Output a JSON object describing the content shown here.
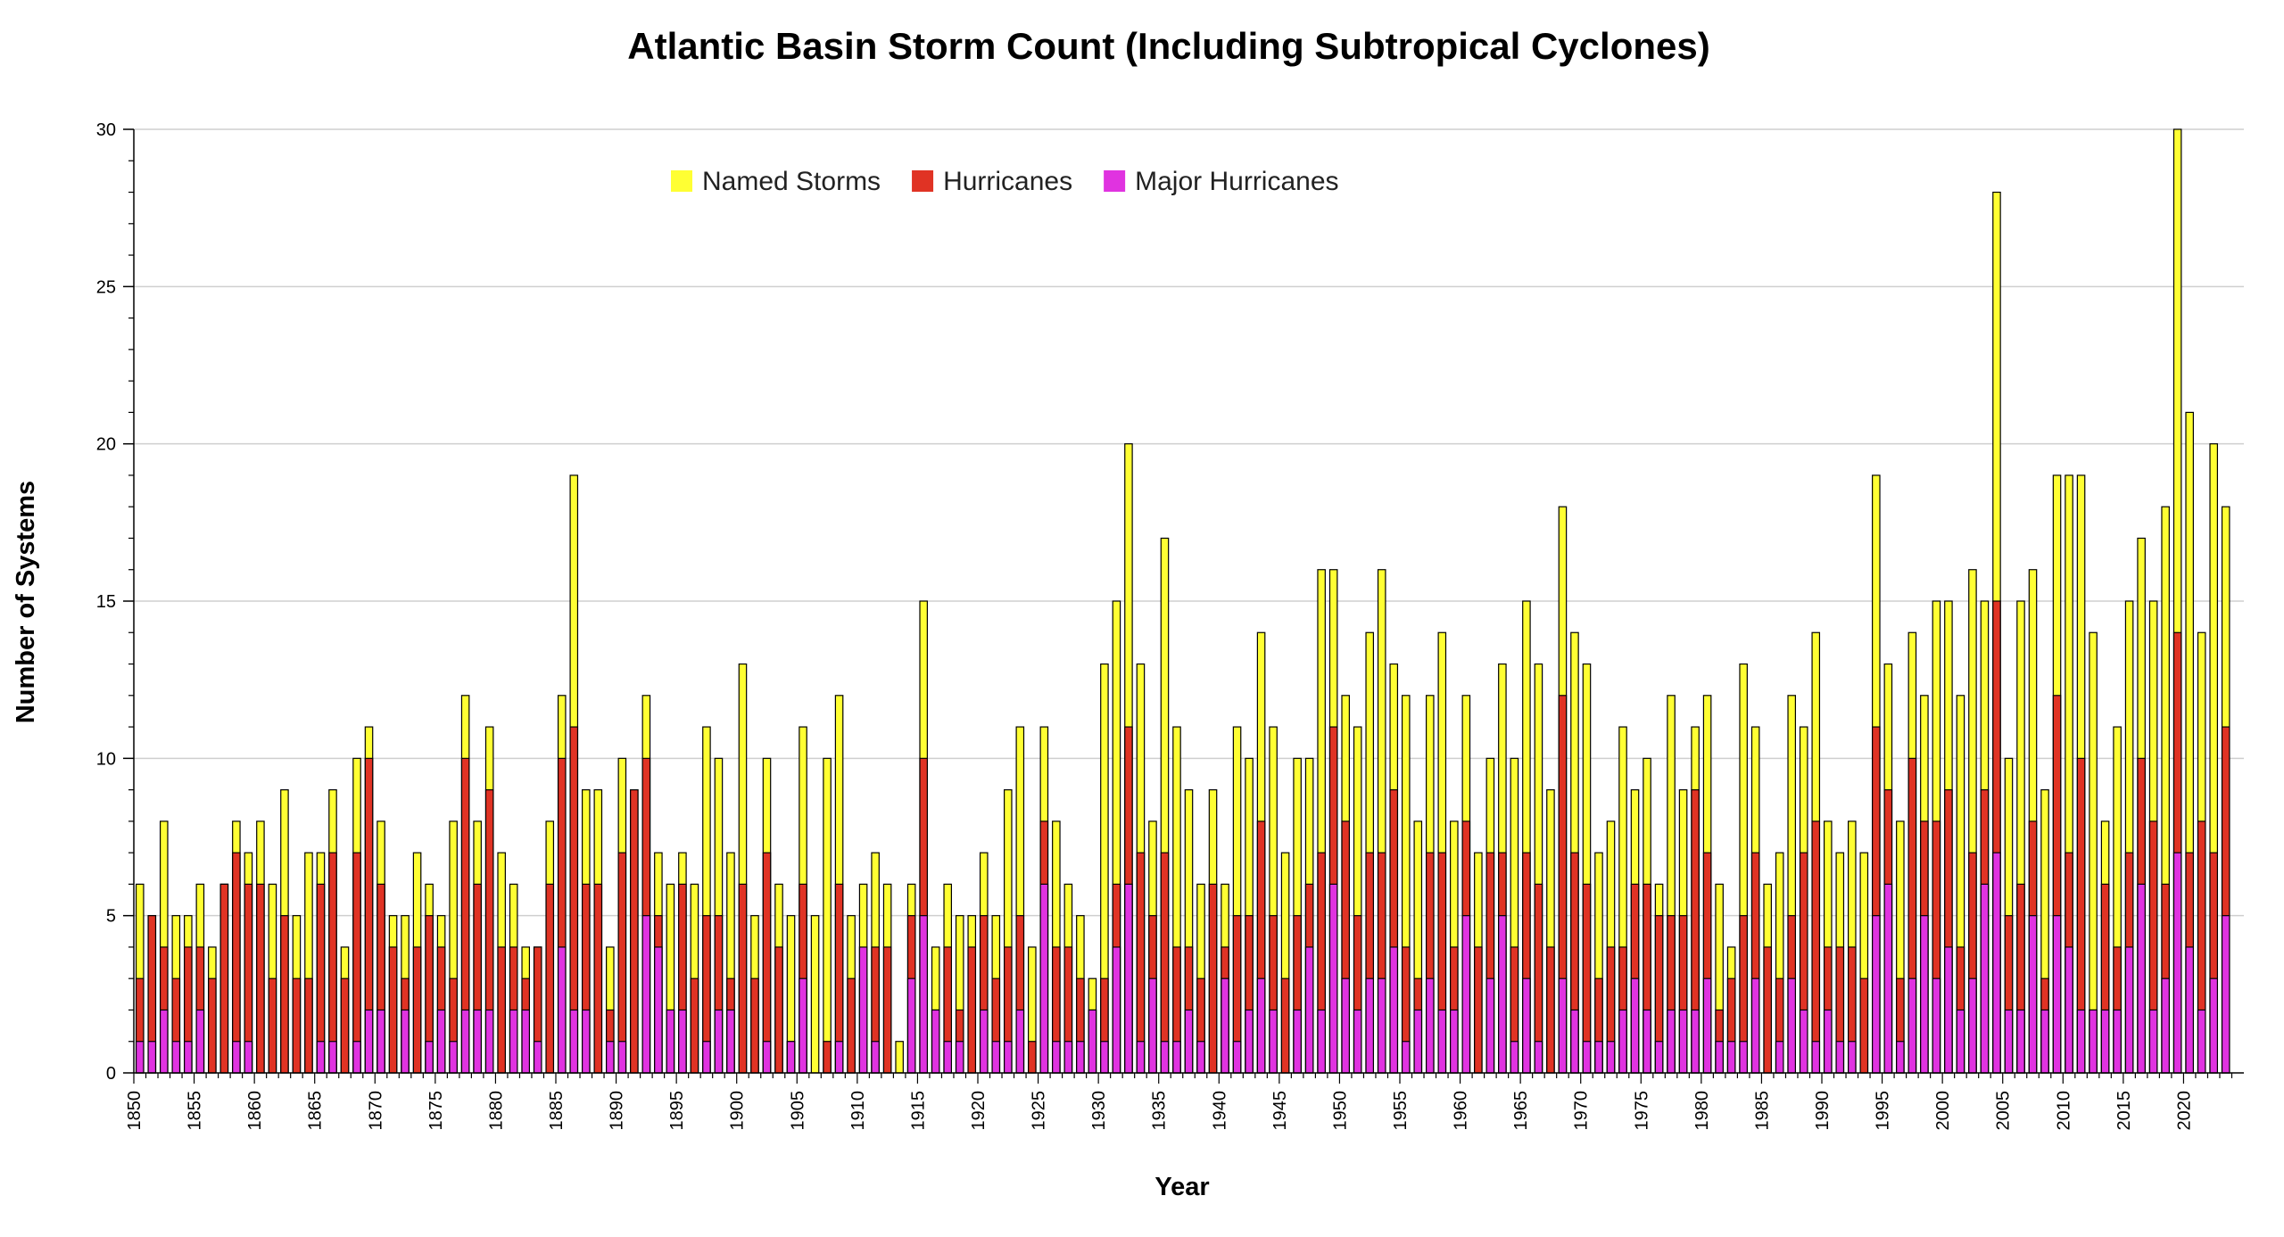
{
  "chart_data": {
    "type": "bar",
    "stacking": "overlay",
    "title": "Atlantic Basin Storm Count (Including Subtropical Cyclones)",
    "xlabel": "Year",
    "ylabel": "Number of Systems",
    "ylim": [
      0,
      30
    ],
    "y_ticks": [
      0,
      5,
      10,
      15,
      20,
      25,
      30
    ],
    "x_range": [
      1850,
      2024
    ],
    "x_ticks": [
      1850,
      1855,
      1860,
      1865,
      1870,
      1875,
      1880,
      1885,
      1890,
      1895,
      1900,
      1905,
      1910,
      1915,
      1920,
      1925,
      1930,
      1935,
      1940,
      1945,
      1950,
      1955,
      1960,
      1965,
      1970,
      1975,
      1980,
      1985,
      1990,
      1995,
      2000,
      2005,
      2010,
      2015,
      2020
    ],
    "grid": true,
    "legend_position": "top-center",
    "series": [
      {
        "name": "Named Storms",
        "color": "#ffff33",
        "values": [
          6,
          5,
          8,
          5,
          5,
          6,
          4,
          6,
          8,
          7,
          8,
          6,
          9,
          5,
          7,
          7,
          9,
          4,
          10,
          11,
          8,
          5,
          5,
          7,
          6,
          5,
          8,
          12,
          8,
          11,
          7,
          6,
          4,
          4,
          8,
          12,
          19,
          9,
          9,
          4,
          10,
          9,
          12,
          7,
          6,
          7,
          6,
          11,
          10,
          7,
          13,
          5,
          10,
          6,
          5,
          11,
          5,
          10,
          12,
          5,
          6,
          7,
          6,
          1,
          6,
          15,
          4,
          6,
          5,
          5,
          7,
          5,
          9,
          11,
          4,
          11,
          8,
          6,
          5,
          3,
          13,
          15,
          20,
          13,
          8,
          17,
          11,
          9,
          6,
          9,
          6,
          11,
          10,
          14,
          11,
          7,
          10,
          10,
          16,
          16,
          12,
          11,
          14,
          16,
          13,
          12,
          8,
          12,
          14,
          8,
          12,
          7,
          10,
          13,
          10,
          15,
          13,
          9,
          18,
          14,
          13,
          7,
          8,
          11,
          9,
          10,
          6,
          12,
          9,
          11,
          12,
          6,
          4,
          13,
          11,
          6,
          7,
          12,
          11,
          14,
          8,
          7,
          8,
          7,
          19,
          13,
          8,
          14,
          12,
          15,
          15,
          12,
          16,
          15,
          28,
          10,
          15,
          16,
          9,
          19,
          19,
          19,
          14,
          8,
          11,
          15,
          17,
          15,
          18,
          30,
          21,
          14,
          20,
          18,
          0
        ]
      },
      {
        "name": "Hurricanes",
        "color": "#e03324",
        "values": [
          3,
          5,
          4,
          3,
          4,
          4,
          3,
          6,
          7,
          6,
          6,
          3,
          5,
          3,
          3,
          6,
          7,
          3,
          7,
          10,
          6,
          4,
          3,
          4,
          5,
          4,
          3,
          10,
          6,
          9,
          4,
          4,
          3,
          4,
          6,
          10,
          11,
          6,
          6,
          2,
          7,
          9,
          10,
          5,
          2,
          6,
          3,
          5,
          5,
          3,
          6,
          3,
          7,
          4,
          1,
          6,
          0,
          1,
          6,
          3,
          3,
          4,
          4,
          0,
          5,
          10,
          2,
          4,
          2,
          4,
          5,
          3,
          4,
          5,
          1,
          8,
          4,
          4,
          3,
          2,
          3,
          6,
          11,
          7,
          5,
          7,
          4,
          4,
          3,
          6,
          4,
          5,
          5,
          8,
          5,
          3,
          5,
          6,
          7,
          11,
          8,
          5,
          7,
          7,
          9,
          4,
          3,
          7,
          7,
          4,
          8,
          4,
          7,
          7,
          4,
          7,
          6,
          4,
          12,
          7,
          6,
          3,
          4,
          4,
          6,
          6,
          5,
          5,
          5,
          9,
          7,
          2,
          3,
          5,
          7,
          4,
          3,
          5,
          7,
          8,
          4,
          4,
          4,
          3,
          11,
          9,
          3,
          10,
          8,
          8,
          9,
          4,
          7,
          9,
          15,
          5,
          6,
          8,
          3,
          12,
          7,
          10,
          2,
          6,
          4,
          7,
          10,
          8,
          6,
          14,
          7,
          8,
          7,
          11,
          0
        ]
      },
      {
        "name": "Major Hurricanes",
        "color": "#e033e0",
        "values": [
          1,
          1,
          2,
          1,
          1,
          2,
          0,
          0,
          1,
          1,
          0,
          0,
          0,
          0,
          0,
          1,
          1,
          0,
          1,
          2,
          2,
          0,
          2,
          0,
          1,
          2,
          1,
          2,
          2,
          2,
          0,
          2,
          2,
          1,
          0,
          4,
          2,
          2,
          0,
          1,
          1,
          0,
          5,
          4,
          2,
          2,
          0,
          1,
          2,
          2,
          0,
          0,
          1,
          0,
          1,
          3,
          0,
          0,
          1,
          0,
          4,
          1,
          0,
          0,
          3,
          5,
          2,
          1,
          1,
          0,
          2,
          1,
          1,
          2,
          0,
          6,
          1,
          1,
          1,
          2,
          1,
          4,
          6,
          1,
          3,
          1,
          1,
          2,
          1,
          0,
          3,
          1,
          2,
          3,
          2,
          0,
          2,
          4,
          2,
          6,
          3,
          2,
          3,
          3,
          4,
          1,
          2,
          3,
          2,
          2,
          5,
          0,
          3,
          5,
          1,
          3,
          1,
          0,
          3,
          2,
          1,
          1,
          1,
          2,
          3,
          2,
          1,
          2,
          2,
          2,
          3,
          1,
          1,
          1,
          3,
          0,
          1,
          3,
          2,
          1,
          2,
          1,
          1,
          0,
          5,
          6,
          1,
          3,
          5,
          3,
          4,
          2,
          3,
          6,
          7,
          2,
          2,
          5,
          2,
          5,
          4,
          2,
          2,
          2,
          2,
          4,
          6,
          2,
          3,
          7,
          4,
          2,
          3,
          5,
          0
        ]
      }
    ]
  }
}
